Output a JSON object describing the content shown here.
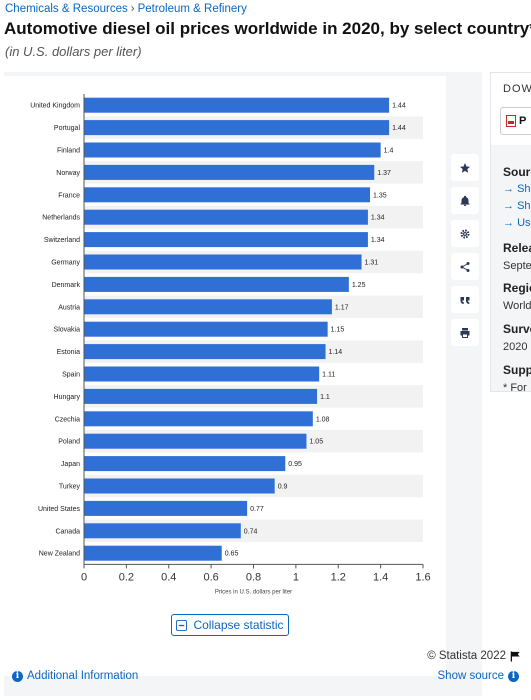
{
  "breadcrumb": {
    "items": [
      "Chemicals & Resources",
      "Petroleum & Refinery"
    ],
    "separator": "›"
  },
  "title": "Automotive diesel oil prices worldwide in 2020, by select country*",
  "subtitle": "(in U.S. dollars per liter)",
  "toolbar": [
    "star-icon",
    "bell-icon",
    "gear-icon",
    "share-icon",
    "quote-icon",
    "print-icon"
  ],
  "chart_data": {
    "type": "bar",
    "orientation": "horizontal",
    "categories": [
      "United Kingdom",
      "Portugal",
      "Finland",
      "Norway",
      "France",
      "Netherlands",
      "Switzerland",
      "Germany",
      "Denmark",
      "Austria",
      "Slovakia",
      "Estonia",
      "Spain",
      "Hungary",
      "Czechia",
      "Poland",
      "Japan",
      "Turkey",
      "United States",
      "Canada",
      "New Zealand"
    ],
    "values": [
      1.44,
      1.44,
      1.4,
      1.37,
      1.35,
      1.34,
      1.34,
      1.31,
      1.25,
      1.17,
      1.15,
      1.14,
      1.11,
      1.1,
      1.08,
      1.05,
      0.95,
      0.9,
      0.77,
      0.74,
      0.65
    ],
    "value_labels": [
      "1.44",
      "1.44",
      "1.4",
      "1.37",
      "1.35",
      "1.34",
      "1.34",
      "1.31",
      "1.25",
      "1.17",
      "1.15",
      "1.14",
      "1.11",
      "1.1",
      "1.08",
      "1.05",
      "0.95",
      "0.9",
      "0.77",
      "0.74",
      "0.65"
    ],
    "xlabel": "Prices in U.S. dollars per liter",
    "ylabel": "",
    "xlim": [
      0,
      1.6
    ],
    "xticks": [
      "0",
      "0.2",
      "0.4",
      "0.6",
      "0.8",
      "1",
      "1.2",
      "1.4",
      "1.6"
    ],
    "bar_color": "#2f6fd6",
    "grid": "alternating row bands",
    "legend": "none"
  },
  "actions": {
    "collapse_label": "Collapse statistic"
  },
  "footer": {
    "credit": "© Statista 2022",
    "additional_info": "Additional Information",
    "show_source": "Show source"
  },
  "sidebar": {
    "download_label": "DOW",
    "pdf_label": "P",
    "source_heading": "Sourc",
    "source_links": [
      "Sho",
      "Sho",
      "Use"
    ],
    "release_heading": "Relea",
    "release_value": "Septe",
    "region_heading": "Regio",
    "region_value": "World",
    "survey_heading": "Surve",
    "survey_value": "2020",
    "supplementary_heading": "Suppl",
    "supplementary_value": "* For"
  }
}
